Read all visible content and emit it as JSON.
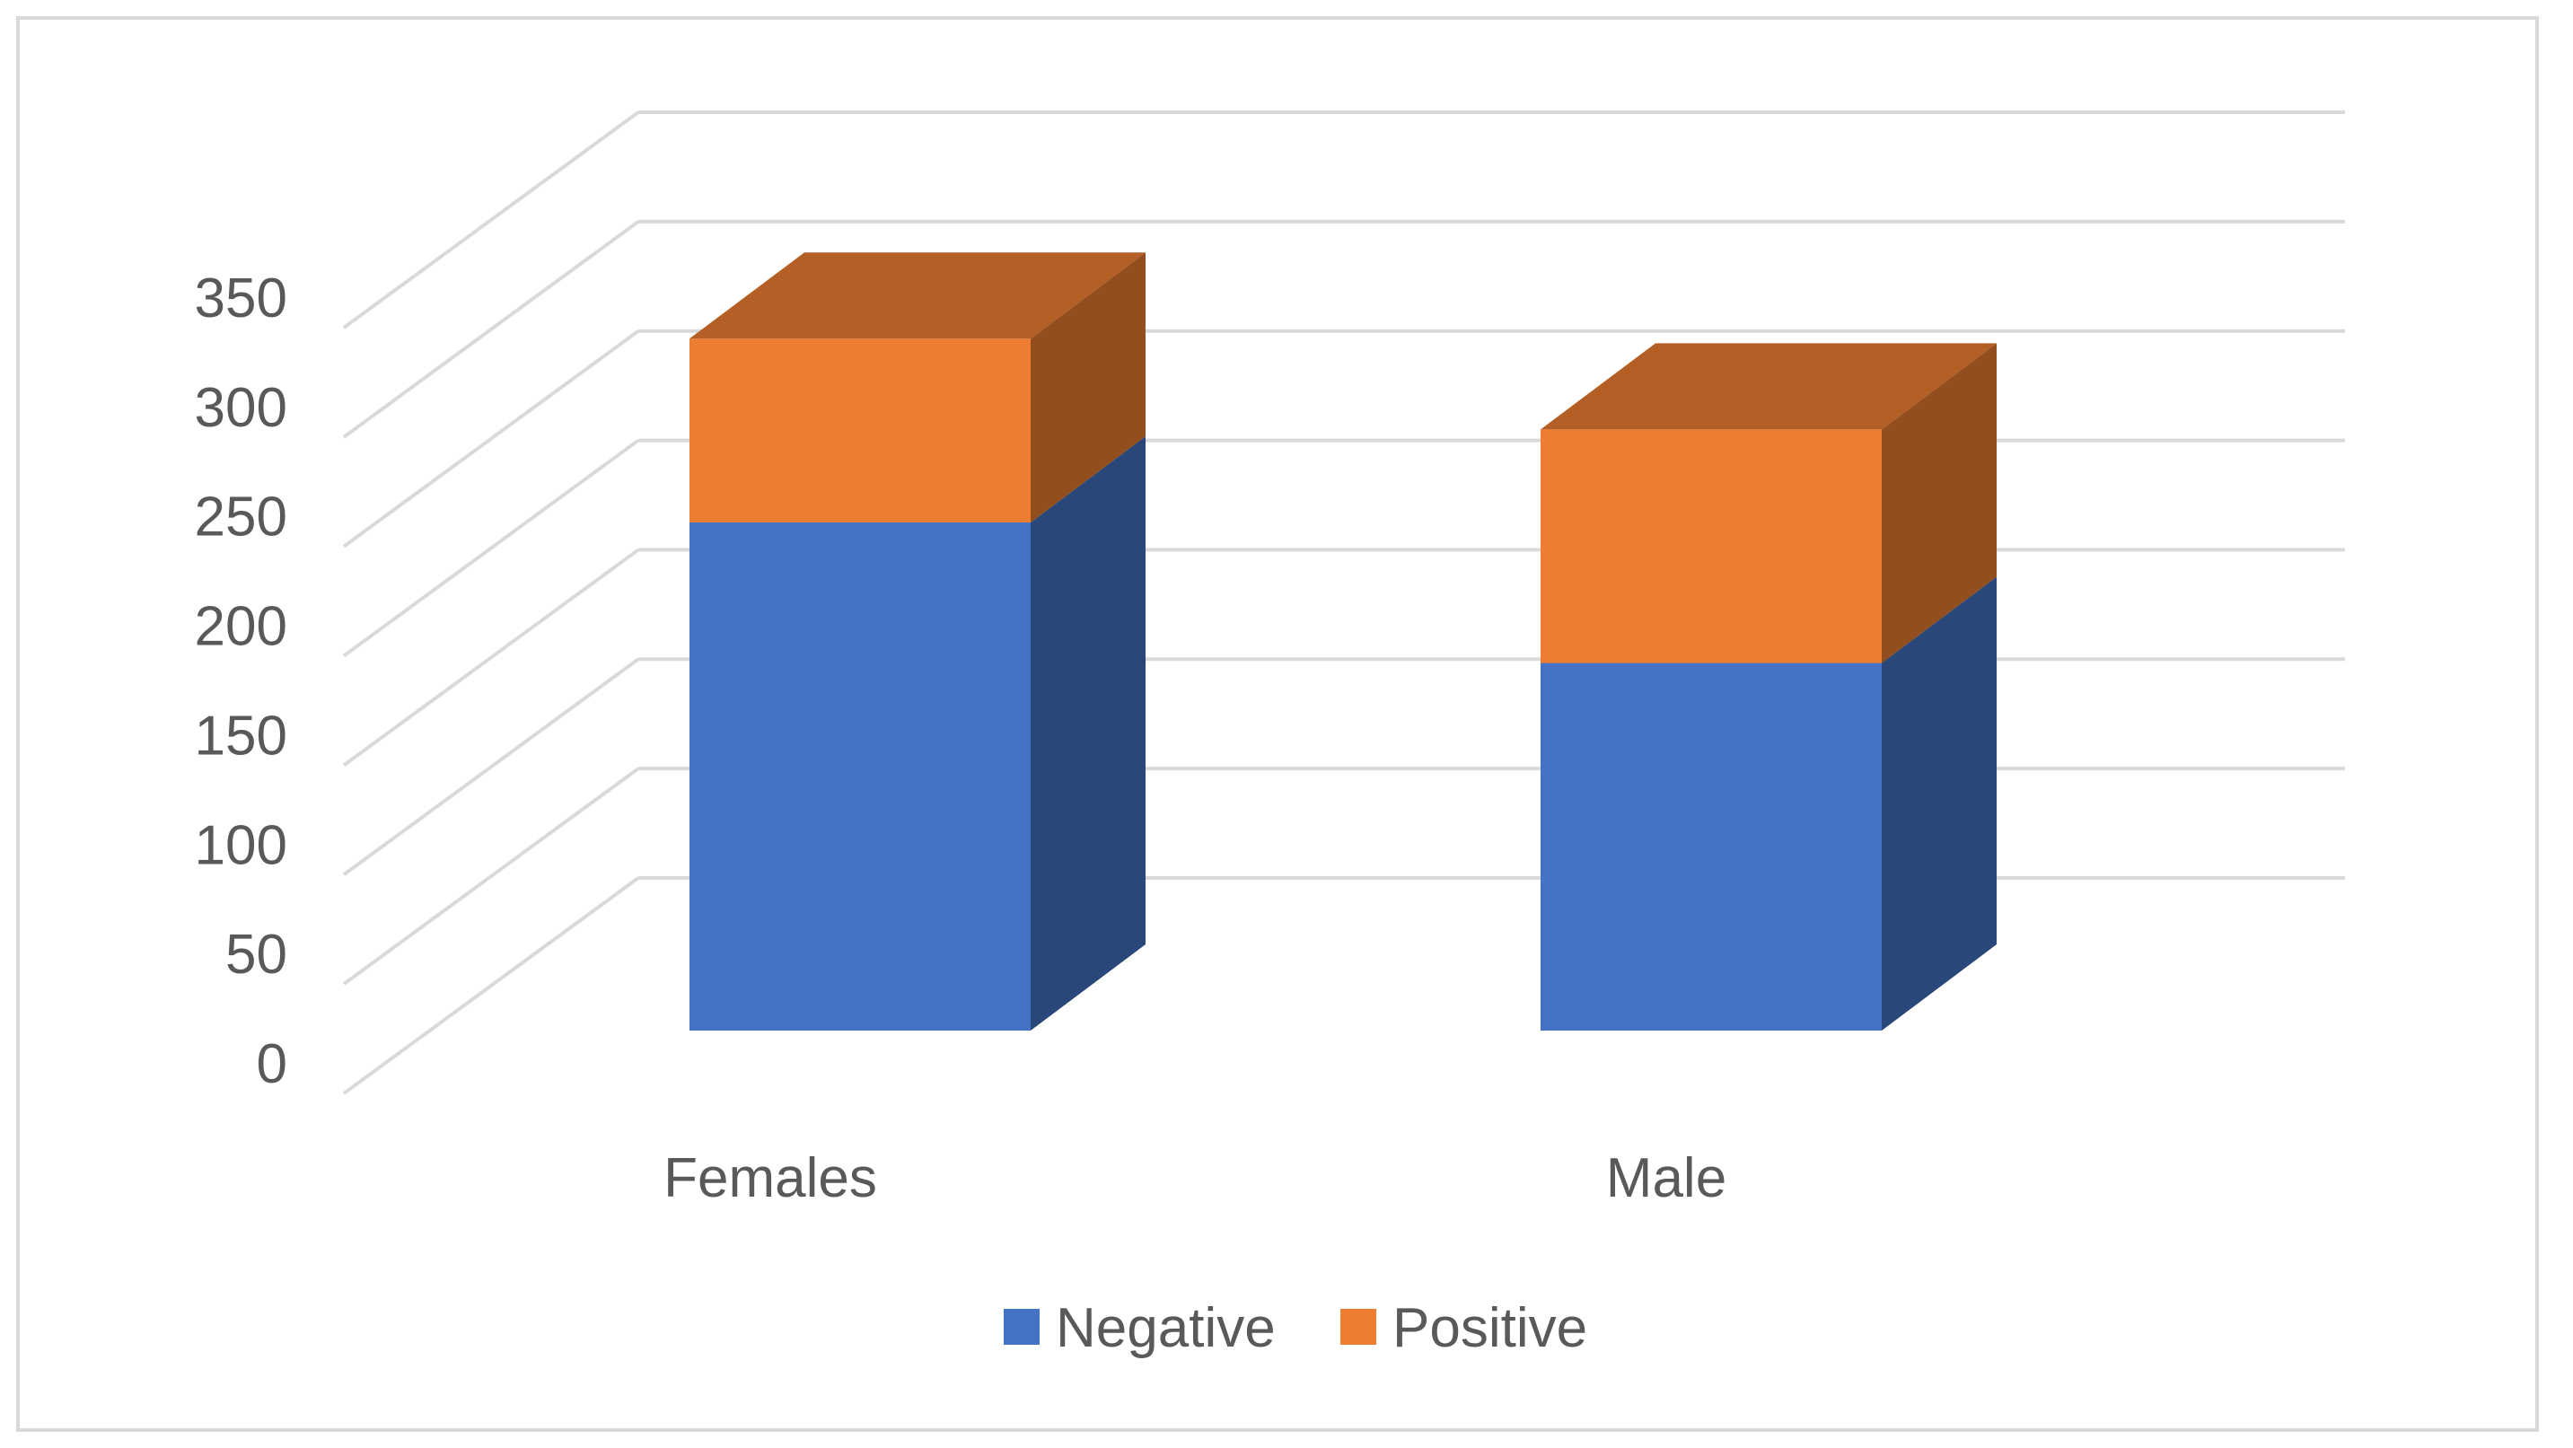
{
  "chart_data": {
    "type": "bar",
    "stacked": true,
    "three_d": true,
    "title": "",
    "xlabel": "",
    "ylabel": "",
    "categories": [
      "Females",
      "Male"
    ],
    "series": [
      {
        "name": "Negative",
        "values": [
          235,
          170
        ],
        "color": "#4472C4"
      },
      {
        "name": "Positive",
        "values": [
          85,
          108
        ],
        "color": "#ED7D31"
      }
    ],
    "ylim": [
      0,
      350
    ],
    "yticks": [
      0,
      50,
      100,
      150,
      200,
      250,
      300,
      350
    ],
    "ytick_labels": [
      "0",
      "50",
      "100",
      "150",
      "200",
      "250",
      "300",
      "350"
    ],
    "grid": true,
    "legend": {
      "position": "bottom",
      "entries": [
        "Negative",
        "Positive"
      ]
    }
  }
}
